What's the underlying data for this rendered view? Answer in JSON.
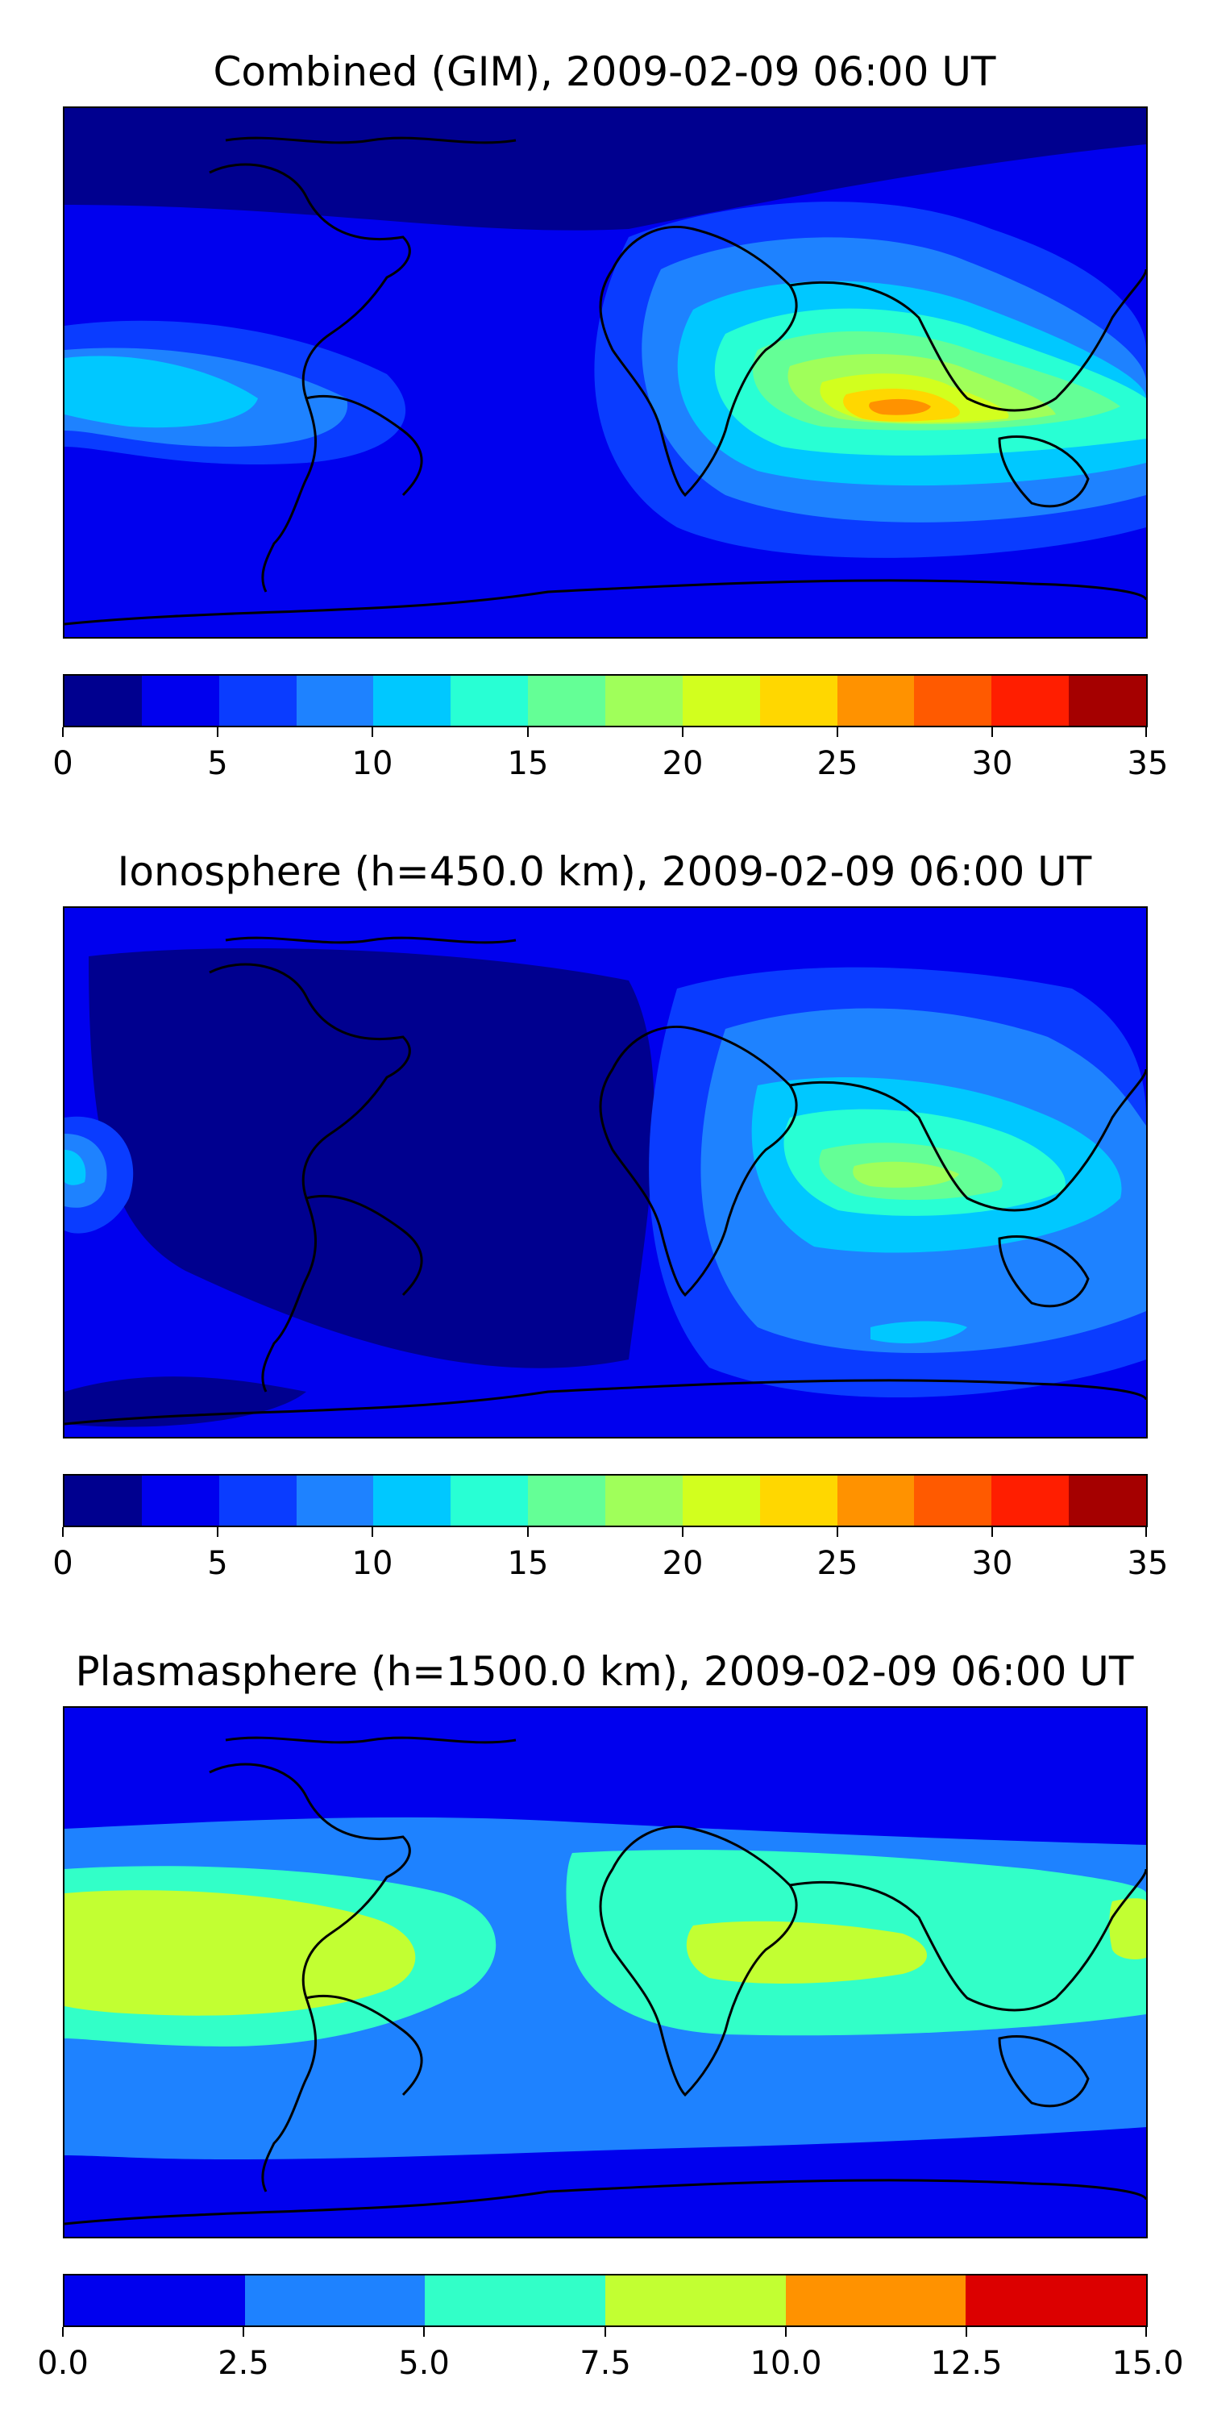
{
  "panels": [
    {
      "title": "Combined (GIM), 2009-02-09 06:00 UT",
      "colorbar": {
        "colors": [
          "#00008f",
          "#0000ee",
          "#0a3cff",
          "#1e82ff",
          "#00c8ff",
          "#28ffd4",
          "#64ff96",
          "#a0ff5a",
          "#d2ff1e",
          "#ffd700",
          "#ff9200",
          "#ff5a00",
          "#ff1e00",
          "#a50000"
        ],
        "ticks": [
          "0",
          "5",
          "10",
          "15",
          "20",
          "25",
          "30",
          "35"
        ]
      }
    },
    {
      "title": "Ionosphere  (h=450.0 km), 2009-02-09 06:00 UT",
      "colorbar": {
        "colors": [
          "#00008f",
          "#0000ee",
          "#0a3cff",
          "#1e82ff",
          "#00c8ff",
          "#28ffd4",
          "#64ff96",
          "#a0ff5a",
          "#d2ff1e",
          "#ffd700",
          "#ff9200",
          "#ff5a00",
          "#ff1e00",
          "#a50000"
        ],
        "ticks": [
          "0",
          "5",
          "10",
          "15",
          "20",
          "25",
          "30",
          "35"
        ]
      }
    },
    {
      "title": "Plasmasphere (h=1500.0 km), 2009-02-09 06:00 UT",
      "colorbar": {
        "colors": [
          "#0000ee",
          "#1e82ff",
          "#32ffc8",
          "#c2ff32",
          "#ff9200",
          "#dc0000"
        ],
        "ticks": [
          "0.0",
          "2.5",
          "5.0",
          "7.5",
          "10.0",
          "12.5",
          "15.0"
        ]
      }
    }
  ]
}
